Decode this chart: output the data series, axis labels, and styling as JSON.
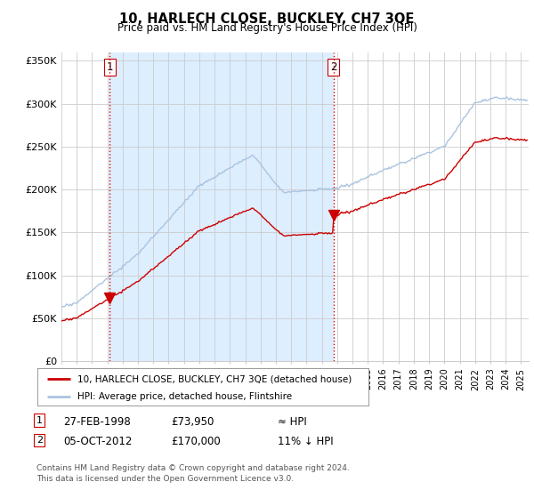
{
  "title": "10, HARLECH CLOSE, BUCKLEY, CH7 3QE",
  "subtitle": "Price paid vs. HM Land Registry's House Price Index (HPI)",
  "ylabel_ticks": [
    "£0",
    "£50K",
    "£100K",
    "£150K",
    "£200K",
    "£250K",
    "£300K",
    "£350K"
  ],
  "ytick_values": [
    0,
    50000,
    100000,
    150000,
    200000,
    250000,
    300000,
    350000
  ],
  "ylim": [
    0,
    360000
  ],
  "xlim_start": 1995.0,
  "xlim_end": 2025.5,
  "hpi_color": "#aac4e0",
  "price_color": "#cc0000",
  "vline_color": "#cc0000",
  "shade_color": "#ddeeff",
  "marker1_date": 1998.15,
  "marker1_price": 73950,
  "marker2_date": 2012.76,
  "marker2_price": 170000,
  "legend_label1": "10, HARLECH CLOSE, BUCKLEY, CH7 3QE (detached house)",
  "legend_label2": "HPI: Average price, detached house, Flintshire",
  "table_row1": [
    "1",
    "27-FEB-1998",
    "£73,950",
    "≈ HPI"
  ],
  "table_row2": [
    "2",
    "05-OCT-2012",
    "£170,000",
    "11% ↓ HPI"
  ],
  "footnote": "Contains HM Land Registry data © Crown copyright and database right 2024.\nThis data is licensed under the Open Government Licence v3.0.",
  "background_color": "#ffffff",
  "grid_color": "#cccccc"
}
